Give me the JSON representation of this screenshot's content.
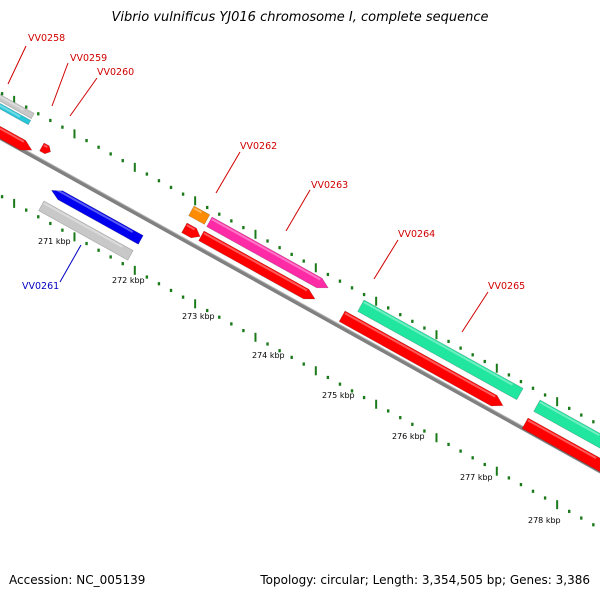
{
  "title": "Vibrio vulnificus YJ016 chromosome I, complete sequence",
  "footer": {
    "accession": "Accession: NC_005139",
    "info": "Topology: circular; Length: 3,354,505 bp; Genes: 3,386"
  },
  "colors": {
    "backbone": "#808080",
    "tick": "#1a7a1a",
    "label_forward": "#d00000",
    "label_reverse": "#0000c0",
    "red": "#ff0000",
    "blue": "#0000ee",
    "silver": "#c8c8c8",
    "magenta": "#ff2aa6",
    "orange": "#ff8c00",
    "aqua": "#20e6a0",
    "cyan": "#26c6d8"
  },
  "ticks": [
    {
      "label": "271 kbp"
    },
    {
      "label": "272 kbp"
    },
    {
      "label": "273 kbp"
    },
    {
      "label": "274 kbp"
    },
    {
      "label": "275 kbp"
    },
    {
      "label": "276 kbp"
    },
    {
      "label": "277 kbp"
    },
    {
      "label": "278 kbp"
    }
  ],
  "genes": [
    {
      "id": "VV0258",
      "strand": "forward"
    },
    {
      "id": "VV0259",
      "strand": "forward"
    },
    {
      "id": "VV0260",
      "strand": "forward"
    },
    {
      "id": "VV0261",
      "strand": "reverse"
    },
    {
      "id": "VV0262",
      "strand": "forward"
    },
    {
      "id": "VV0263",
      "strand": "forward"
    },
    {
      "id": "VV0264",
      "strand": "forward"
    },
    {
      "id": "VV0265",
      "strand": "forward"
    }
  ]
}
